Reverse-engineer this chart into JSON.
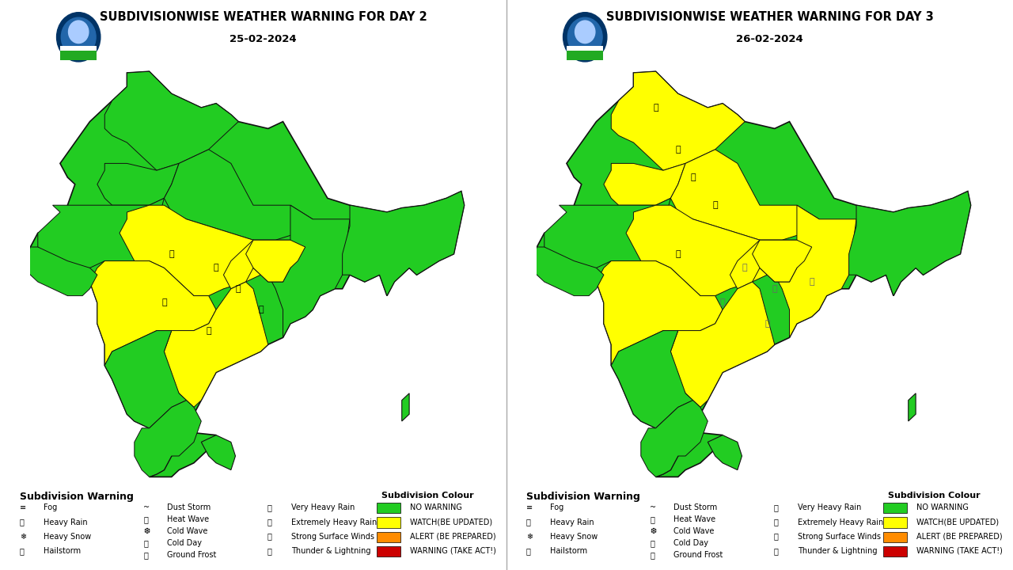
{
  "title_left": "SUBDIVISIONWISE WEATHER WARNING FOR DAY 2",
  "date_left": "25-02-2024",
  "title_right": "SUBDIVISIONWISE WEATHER WARNING FOR DAY 3",
  "date_right": "26-02-2024",
  "bg_color": "#ffffff",
  "green": "#22cc22",
  "yellow": "#ffff00",
  "orange": "#ff8c00",
  "red": "#cc0000",
  "outline": "#111111",
  "title_fontsize": 10.5,
  "date_fontsize": 9.5,
  "legend_title": "Subdivision Warning",
  "legend_colour_title": "Subdivision Colour",
  "colour_legend": [
    {
      "color": "#22cc22",
      "label": "NO WARNING"
    },
    {
      "color": "#ffff00",
      "label": "WATCH(BE UPDATED)"
    },
    {
      "color": "#ff8c00",
      "label": "ALERT (BE PREPARED)"
    },
    {
      "color": "#cc0000",
      "label": "WARNING (TAKE ACT!)"
    }
  ]
}
